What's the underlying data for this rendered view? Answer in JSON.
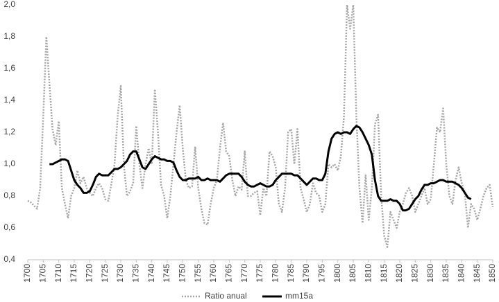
{
  "chart_data": {
    "type": "line",
    "x": [
      1700,
      1701,
      1702,
      1703,
      1704,
      1705,
      1706,
      1707,
      1708,
      1709,
      1710,
      1711,
      1712,
      1713,
      1714,
      1715,
      1716,
      1717,
      1718,
      1719,
      1720,
      1721,
      1722,
      1723,
      1724,
      1725,
      1726,
      1727,
      1728,
      1729,
      1730,
      1731,
      1732,
      1733,
      1734,
      1735,
      1736,
      1737,
      1738,
      1739,
      1740,
      1741,
      1742,
      1743,
      1744,
      1745,
      1746,
      1747,
      1748,
      1749,
      1750,
      1751,
      1752,
      1753,
      1754,
      1755,
      1756,
      1757,
      1758,
      1759,
      1760,
      1761,
      1762,
      1763,
      1764,
      1765,
      1766,
      1767,
      1768,
      1769,
      1770,
      1771,
      1772,
      1773,
      1774,
      1775,
      1776,
      1777,
      1778,
      1779,
      1780,
      1781,
      1782,
      1783,
      1784,
      1785,
      1786,
      1787,
      1788,
      1789,
      1790,
      1791,
      1792,
      1793,
      1794,
      1795,
      1796,
      1797,
      1798,
      1799,
      1800,
      1801,
      1802,
      1803,
      1804,
      1805,
      1806,
      1807,
      1808,
      1809,
      1810,
      1811,
      1812,
      1813,
      1814,
      1815,
      1816,
      1817,
      1818,
      1819,
      1820,
      1821,
      1822,
      1823,
      1824,
      1825,
      1826,
      1827,
      1828,
      1829,
      1830,
      1831,
      1832,
      1833,
      1834,
      1835,
      1836,
      1837,
      1838,
      1839,
      1840,
      1841,
      1842,
      1843,
      1844,
      1845,
      1846,
      1847,
      1848,
      1849,
      1850
    ],
    "series": [
      {
        "name": "Ratio anual",
        "color": "#a6a6a6",
        "style": "dotted",
        "values": [
          0.77,
          0.76,
          0.74,
          0.72,
          0.85,
          1.3,
          1.8,
          1.5,
          1.22,
          1.12,
          1.27,
          0.85,
          0.75,
          0.66,
          0.8,
          0.85,
          0.96,
          0.88,
          0.92,
          0.85,
          0.82,
          0.8,
          0.85,
          0.88,
          0.85,
          0.78,
          0.77,
          0.88,
          1.0,
          1.3,
          1.49,
          1.0,
          0.8,
          0.83,
          0.88,
          1.24,
          1.0,
          0.85,
          1.0,
          1.1,
          1.0,
          1.47,
          1.2,
          0.87,
          0.8,
          0.66,
          0.8,
          1.0,
          1.2,
          1.37,
          1.1,
          0.9,
          0.85,
          0.86,
          1.11,
          0.85,
          0.72,
          0.63,
          0.62,
          0.75,
          0.85,
          0.9,
          1.1,
          1.26,
          1.08,
          1.05,
          0.9,
          0.8,
          0.86,
          0.84,
          1.08,
          0.8,
          0.8,
          0.82,
          0.83,
          0.68,
          0.85,
          0.8,
          1.08,
          1.05,
          0.98,
          0.75,
          0.7,
          0.85,
          1.2,
          1.22,
          1.0,
          1.22,
          0.85,
          0.78,
          0.7,
          0.75,
          0.88,
          0.82,
          0.8,
          0.7,
          0.75,
          1.0,
          0.98,
          1.0,
          0.96,
          1.05,
          1.3,
          2.0,
          1.85,
          2.0,
          1.3,
          0.85,
          0.63,
          0.93,
          0.65,
          0.85,
          1.25,
          1.31,
          0.8,
          0.55,
          0.48,
          0.7,
          0.65,
          0.6,
          0.7,
          0.75,
          0.82,
          0.85,
          0.8,
          0.7,
          0.75,
          0.8,
          0.85,
          0.75,
          0.78,
          1.0,
          1.23,
          1.2,
          1.35,
          1.0,
          0.8,
          0.75,
          0.9,
          0.98,
          0.88,
          0.82,
          0.6,
          0.75,
          0.72,
          0.65,
          0.72,
          0.8,
          0.85,
          0.87,
          0.73
        ]
      },
      {
        "name": "mm15a",
        "color": "#000000",
        "style": "solid",
        "values": [
          null,
          null,
          null,
          null,
          null,
          null,
          null,
          1.0,
          1.0,
          1.01,
          1.02,
          1.03,
          1.03,
          1.02,
          0.96,
          0.9,
          0.87,
          0.85,
          0.82,
          0.82,
          0.83,
          0.87,
          0.92,
          0.94,
          0.93,
          0.93,
          0.93,
          0.95,
          0.97,
          0.97,
          0.98,
          1.0,
          1.02,
          1.06,
          1.08,
          1.08,
          1.03,
          0.98,
          0.97,
          1.0,
          1.03,
          1.05,
          1.04,
          1.03,
          1.03,
          1.02,
          1.02,
          1.01,
          0.96,
          0.92,
          0.9,
          0.9,
          0.91,
          0.91,
          0.91,
          0.92,
          0.9,
          0.9,
          0.91,
          0.9,
          0.9,
          0.9,
          0.89,
          0.91,
          0.93,
          0.94,
          0.94,
          0.94,
          0.94,
          0.92,
          0.89,
          0.87,
          0.86,
          0.86,
          0.87,
          0.88,
          0.87,
          0.86,
          0.86,
          0.87,
          0.9,
          0.92,
          0.94,
          0.94,
          0.94,
          0.94,
          0.93,
          0.93,
          0.91,
          0.89,
          0.87,
          0.89,
          0.91,
          0.91,
          0.9,
          0.9,
          0.94,
          1.08,
          1.16,
          1.19,
          1.2,
          1.19,
          1.2,
          1.2,
          1.19,
          1.22,
          1.24,
          1.23,
          1.2,
          1.16,
          1.12,
          1.06,
          0.9,
          0.8,
          0.77,
          0.77,
          0.77,
          0.78,
          0.77,
          0.77,
          0.75,
          0.71,
          0.71,
          0.72,
          0.75,
          0.78,
          0.8,
          0.84,
          0.87,
          0.87,
          0.88,
          0.88,
          0.89,
          0.9,
          0.9,
          0.89,
          0.89,
          0.89,
          0.88,
          0.87,
          0.85,
          0.82,
          0.79,
          0.78,
          null,
          null,
          null,
          null,
          null,
          null,
          null
        ]
      }
    ],
    "xlim": [
      1700,
      1850
    ],
    "xticks": [
      1700,
      1705,
      1710,
      1715,
      1720,
      1725,
      1730,
      1735,
      1740,
      1745,
      1750,
      1755,
      1760,
      1765,
      1770,
      1775,
      1780,
      1785,
      1790,
      1795,
      1800,
      1805,
      1810,
      1815,
      1820,
      1825,
      1830,
      1835,
      1840,
      1845,
      1850
    ],
    "ylim": [
      0.4,
      2.0
    ],
    "yticks": [
      {
        "value": 0.4,
        "label": "0,4"
      },
      {
        "value": 0.6,
        "label": "0,6"
      },
      {
        "value": 0.8,
        "label": "0,8"
      },
      {
        "value": 1.0,
        "label": "1,0"
      },
      {
        "value": 1.2,
        "label": "1,2"
      },
      {
        "value": 1.4,
        "label": "1,4"
      },
      {
        "value": 1.6,
        "label": "1,6"
      },
      {
        "value": 1.8,
        "label": "1,8"
      },
      {
        "value": 2.0,
        "label": "2,0"
      }
    ],
    "grid": false,
    "legend": "bottom"
  }
}
